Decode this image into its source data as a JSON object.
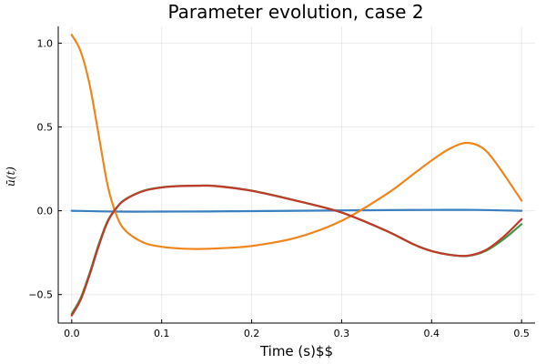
{
  "chart_data": {
    "type": "line",
    "title": "Parameter evolution, case 2",
    "xlabel": "Time (s)$$",
    "ylabel": "ū(t)",
    "xlim": [
      -0.015,
      0.515
    ],
    "ylim": [
      -0.67,
      1.1
    ],
    "xticks": [
      0.0,
      0.1,
      0.2,
      0.3,
      0.4,
      0.5
    ],
    "xtick_labels": [
      "0.0",
      "0.1",
      "0.2",
      "0.3",
      "0.4",
      "0.5"
    ],
    "yticks": [
      -0.5,
      0.0,
      0.5,
      1.0
    ],
    "ytick_labels": [
      "−0.5",
      "0.0",
      "0.5",
      "1.0"
    ],
    "grid": true,
    "legend": "none",
    "series": [
      {
        "color": "#3a7fc1",
        "x": [
          0.0,
          0.05,
          0.1,
          0.15,
          0.2,
          0.25,
          0.3,
          0.35,
          0.4,
          0.45,
          0.5
        ],
        "y": [
          0.0,
          -0.005,
          -0.005,
          -0.004,
          -0.002,
          0.0,
          0.002,
          0.004,
          0.005,
          0.005,
          0.0
        ]
      },
      {
        "color": "#f0851c",
        "x": [
          0.0,
          0.01,
          0.02,
          0.03,
          0.04,
          0.05,
          0.06,
          0.08,
          0.1,
          0.12,
          0.14,
          0.16,
          0.2,
          0.25,
          0.3,
          0.35,
          0.38,
          0.4,
          0.42,
          0.44,
          0.46,
          0.48,
          0.5
        ],
        "y": [
          1.05,
          0.95,
          0.75,
          0.45,
          0.15,
          -0.03,
          -0.12,
          -0.19,
          -0.215,
          -0.225,
          -0.228,
          -0.225,
          -0.21,
          -0.16,
          -0.06,
          0.1,
          0.22,
          0.3,
          0.37,
          0.405,
          0.36,
          0.22,
          0.06
        ]
      },
      {
        "color": "#3f9a3f",
        "x": [
          0.0,
          0.01,
          0.02,
          0.03,
          0.04,
          0.05,
          0.06,
          0.08,
          0.1,
          0.12,
          0.14,
          0.16,
          0.2,
          0.25,
          0.3,
          0.35,
          0.38,
          0.4,
          0.42,
          0.44,
          0.46,
          0.48,
          0.5
        ],
        "y": [
          -0.615,
          -0.52,
          -0.37,
          -0.2,
          -0.06,
          0.02,
          0.07,
          0.12,
          0.14,
          0.148,
          0.15,
          0.148,
          0.12,
          0.06,
          -0.01,
          -0.12,
          -0.2,
          -0.24,
          -0.262,
          -0.27,
          -0.24,
          -0.17,
          -0.08
        ]
      },
      {
        "color": "#c0392b",
        "x": [
          0.0,
          0.01,
          0.02,
          0.03,
          0.04,
          0.05,
          0.06,
          0.08,
          0.1,
          0.12,
          0.14,
          0.16,
          0.2,
          0.25,
          0.3,
          0.35,
          0.38,
          0.4,
          0.42,
          0.44,
          0.46,
          0.48,
          0.5
        ],
        "y": [
          -0.625,
          -0.53,
          -0.38,
          -0.21,
          -0.065,
          0.018,
          0.068,
          0.118,
          0.139,
          0.147,
          0.149,
          0.147,
          0.119,
          0.059,
          -0.011,
          -0.121,
          -0.201,
          -0.241,
          -0.263,
          -0.268,
          -0.235,
          -0.155,
          -0.05
        ]
      }
    ]
  }
}
